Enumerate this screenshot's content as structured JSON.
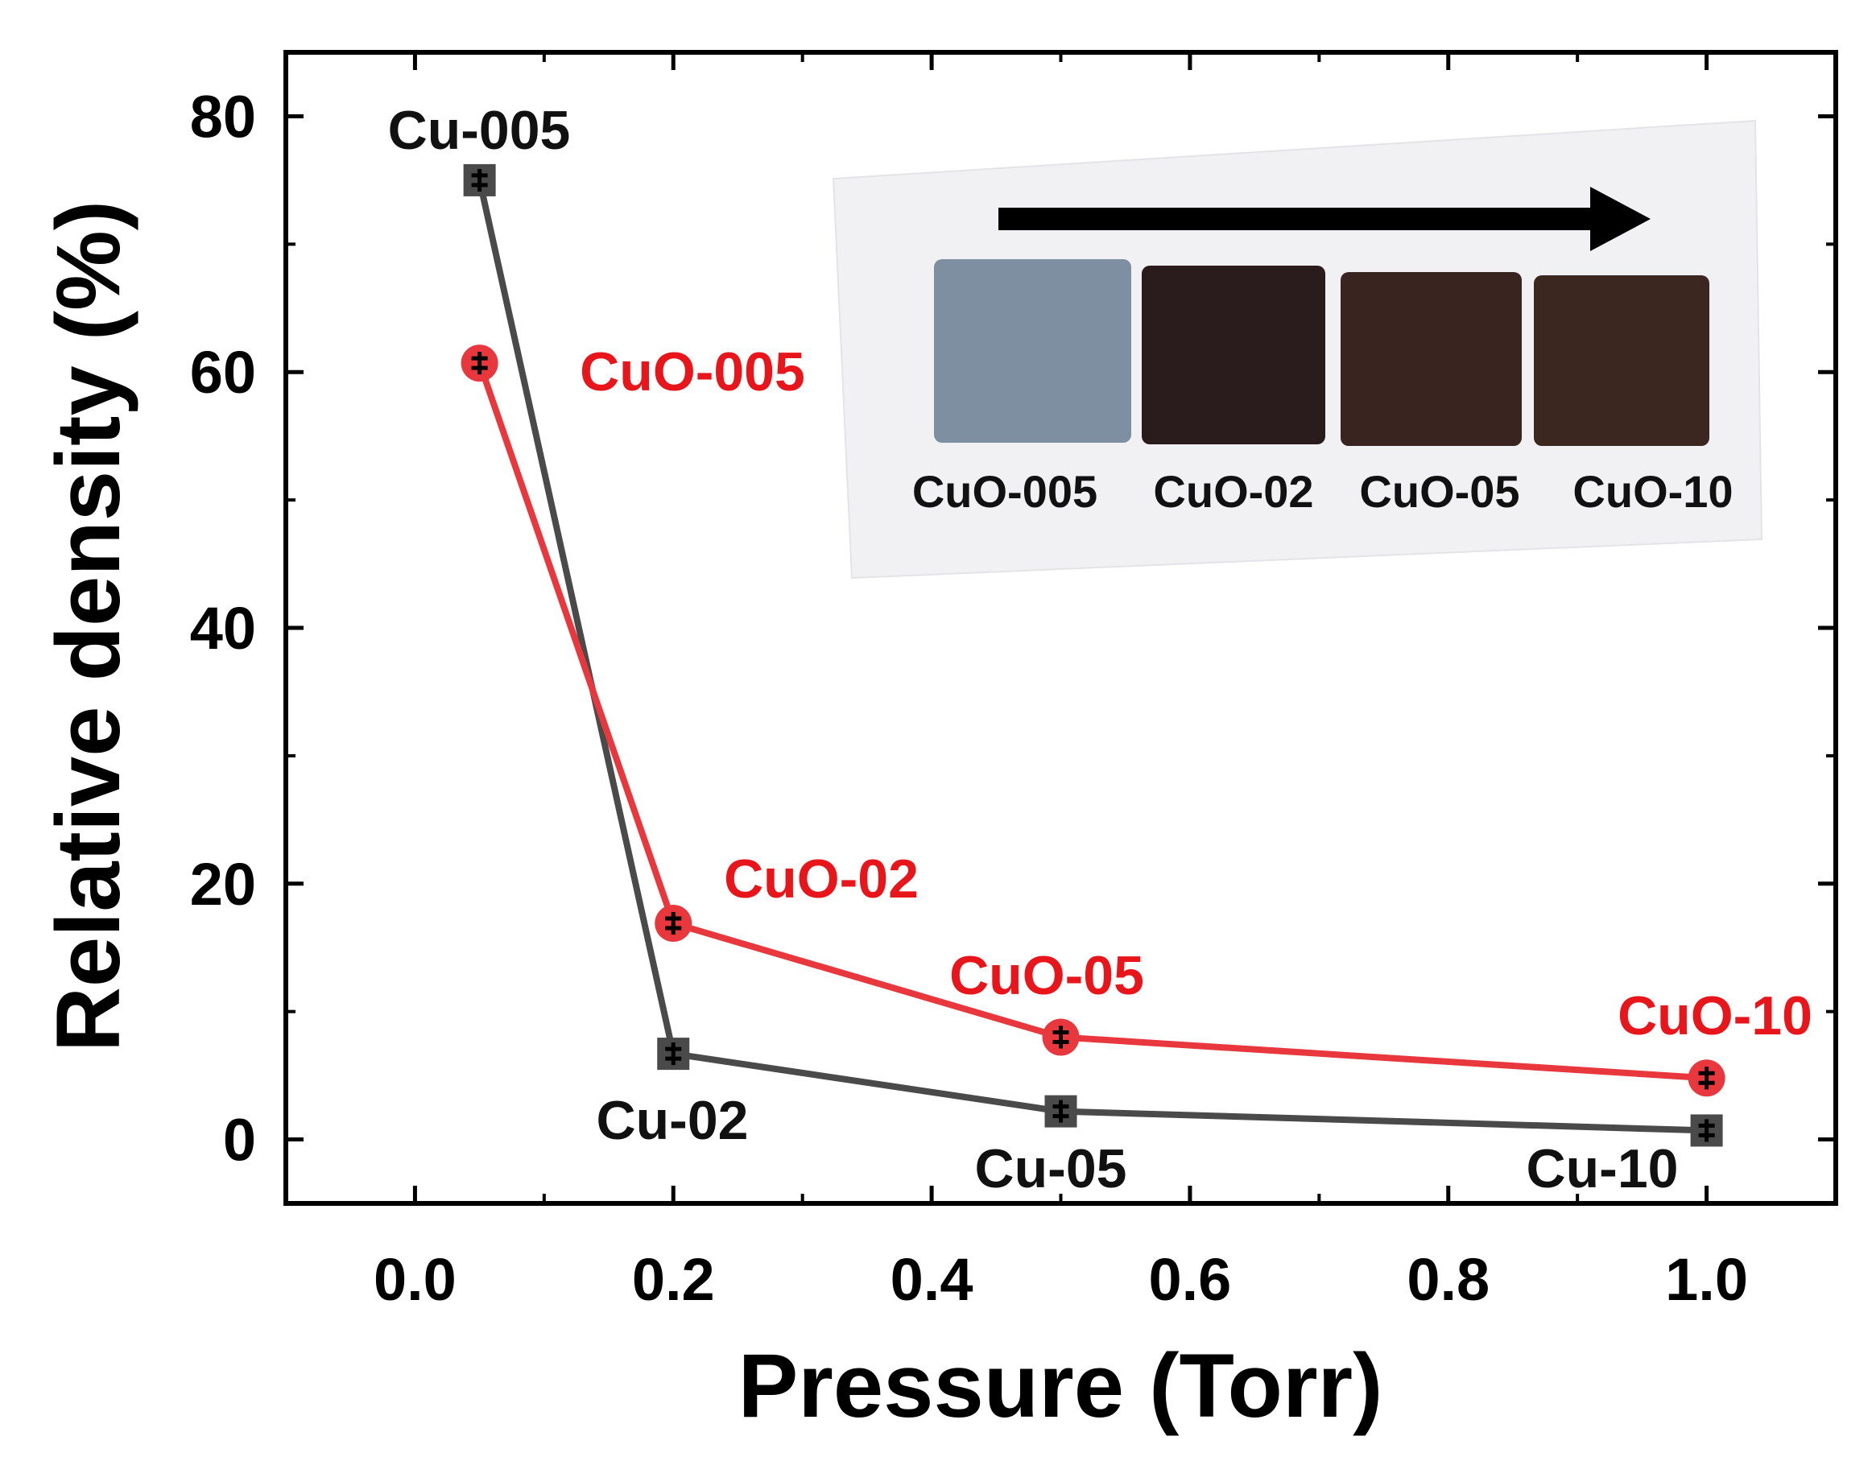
{
  "chart_data": {
    "type": "line",
    "title": "",
    "xlabel": "Pressure (Torr)",
    "ylabel": "Relative density (%)",
    "xlim": [
      -0.1,
      1.1
    ],
    "ylim": [
      -5,
      85
    ],
    "grid": false,
    "x_ticks": [
      "0.0",
      "0.2",
      "0.4",
      "0.6",
      "0.8",
      "1.0"
    ],
    "y_ticks": [
      "0",
      "20",
      "40",
      "60",
      "80"
    ],
    "series": [
      {
        "name": "Cu",
        "color": "#4a4a4a",
        "marker": "square",
        "x": [
          0.05,
          0.2,
          0.5,
          1.0
        ],
        "y": [
          75,
          6.7,
          2.2,
          0.7
        ],
        "labels": [
          "Cu-005",
          "Cu-02",
          "Cu-05",
          "Cu-10"
        ]
      },
      {
        "name": "CuO",
        "color": "#e8383d",
        "marker": "circle",
        "x": [
          0.05,
          0.2,
          0.5,
          1.0
        ],
        "y": [
          60.7,
          16.9,
          8.0,
          4.8
        ],
        "labels": [
          "CuO-005",
          "CuO-02",
          "CuO-05",
          "CuO-10"
        ]
      }
    ],
    "inset": {
      "description_labels": [
        "CuO-005",
        "CuO-02",
        "CuO-05",
        "CuO-10"
      ],
      "swatch_colors": [
        "#7d8fa0",
        "#2a1c1c",
        "#3a2420",
        "#3c2620"
      ]
    }
  }
}
